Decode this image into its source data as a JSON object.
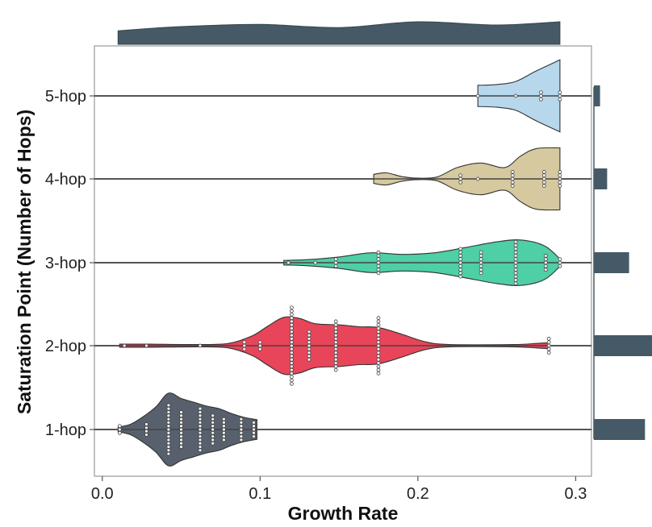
{
  "chart_data": {
    "type": "violin",
    "title": "",
    "xlabel": "Growth Rate",
    "ylabel": "Saturation Point (Number of Hops)",
    "xlim": [
      -0.005,
      0.31
    ],
    "x_ticks": [
      0.0,
      0.1,
      0.2,
      0.3
    ],
    "x_tick_labels": [
      "0.0",
      "0.1",
      "0.2",
      "0.3"
    ],
    "grid": false,
    "categories": [
      "1-hop",
      "2-hop",
      "3-hop",
      "4-hop",
      "5-hop"
    ],
    "colors": {
      "1-hop": "#57606c",
      "2-hop": "#e8455a",
      "3-hop": "#4ecfa6",
      "4-hop": "#d6c9a0",
      "5-hop": "#b7d7ec",
      "marginal": "#455a66",
      "reference_line": "#555555"
    },
    "series": [
      {
        "category": "1-hop",
        "range": [
          0.01,
          0.098
        ],
        "density": [
          [
            0.01,
            0.06
          ],
          [
            0.018,
            0.14
          ],
          [
            0.026,
            0.34
          ],
          [
            0.034,
            0.6
          ],
          [
            0.042,
            0.96
          ],
          [
            0.05,
            0.82
          ],
          [
            0.058,
            0.72
          ],
          [
            0.066,
            0.62
          ],
          [
            0.074,
            0.55
          ],
          [
            0.082,
            0.42
          ],
          [
            0.09,
            0.32
          ],
          [
            0.098,
            0.26
          ]
        ],
        "dot_columns": [
          [
            0.011,
            3
          ],
          [
            0.028,
            4
          ],
          [
            0.042,
            15
          ],
          [
            0.05,
            11
          ],
          [
            0.062,
            13
          ],
          [
            0.07,
            9
          ],
          [
            0.077,
            7
          ],
          [
            0.088,
            7
          ],
          [
            0.096,
            5
          ]
        ]
      },
      {
        "category": "2-hop",
        "range": [
          0.011,
          0.283
        ],
        "density": [
          [
            0.011,
            0.04
          ],
          [
            0.03,
            0.04
          ],
          [
            0.06,
            0.03
          ],
          [
            0.08,
            0.06
          ],
          [
            0.095,
            0.26
          ],
          [
            0.105,
            0.52
          ],
          [
            0.115,
            0.75
          ],
          [
            0.125,
            0.72
          ],
          [
            0.135,
            0.58
          ],
          [
            0.15,
            0.55
          ],
          [
            0.163,
            0.5
          ],
          [
            0.175,
            0.48
          ],
          [
            0.19,
            0.3
          ],
          [
            0.205,
            0.1
          ],
          [
            0.22,
            0.03
          ],
          [
            0.26,
            0.03
          ],
          [
            0.275,
            0.06
          ],
          [
            0.283,
            0.08
          ]
        ],
        "dot_columns": [
          [
            0.014,
            1
          ],
          [
            0.028,
            1
          ],
          [
            0.062,
            1
          ],
          [
            0.09,
            3
          ],
          [
            0.1,
            3
          ],
          [
            0.12,
            23
          ],
          [
            0.131,
            9
          ],
          [
            0.148,
            15
          ],
          [
            0.175,
            17
          ],
          [
            0.283,
            5
          ]
        ]
      },
      {
        "category": "3-hop",
        "range": [
          0.115,
          0.29
        ],
        "density": [
          [
            0.115,
            0.06
          ],
          [
            0.13,
            0.08
          ],
          [
            0.15,
            0.15
          ],
          [
            0.17,
            0.26
          ],
          [
            0.19,
            0.22
          ],
          [
            0.21,
            0.26
          ],
          [
            0.23,
            0.4
          ],
          [
            0.25,
            0.55
          ],
          [
            0.265,
            0.6
          ],
          [
            0.28,
            0.45
          ],
          [
            0.29,
            0.1
          ]
        ],
        "dot_columns": [
          [
            0.118,
            1
          ],
          [
            0.135,
            1
          ],
          [
            0.148,
            3
          ],
          [
            0.175,
            7
          ],
          [
            0.227,
            9
          ],
          [
            0.24,
            7
          ],
          [
            0.262,
            13
          ],
          [
            0.281,
            5
          ],
          [
            0.29,
            3
          ]
        ]
      },
      {
        "category": "4-hop",
        "range": [
          0.172,
          0.29
        ],
        "density": [
          [
            0.172,
            0.12
          ],
          [
            0.18,
            0.16
          ],
          [
            0.19,
            0.06
          ],
          [
            0.2,
            0.02
          ],
          [
            0.212,
            0.05
          ],
          [
            0.225,
            0.3
          ],
          [
            0.24,
            0.42
          ],
          [
            0.255,
            0.3
          ],
          [
            0.265,
            0.6
          ],
          [
            0.275,
            0.8
          ],
          [
            0.29,
            0.82
          ]
        ],
        "dot_columns": [
          [
            0.227,
            3
          ],
          [
            0.238,
            1
          ],
          [
            0.26,
            5
          ],
          [
            0.28,
            5
          ],
          [
            0.29,
            5
          ]
        ]
      },
      {
        "category": "5-hop",
        "range": [
          0.238,
          0.29
        ],
        "density": [
          [
            0.238,
            0.28
          ],
          [
            0.25,
            0.3
          ],
          [
            0.262,
            0.38
          ],
          [
            0.275,
            0.66
          ],
          [
            0.29,
            0.95
          ]
        ],
        "dot_columns": [
          [
            0.238,
            1
          ],
          [
            0.262,
            1
          ],
          [
            0.278,
            3
          ],
          [
            0.29,
            3
          ]
        ]
      }
    ],
    "marginal_x_density": [
      [
        0.01,
        0.42
      ],
      [
        0.05,
        0.55
      ],
      [
        0.1,
        0.62
      ],
      [
        0.15,
        0.52
      ],
      [
        0.2,
        0.7
      ],
      [
        0.25,
        0.6
      ],
      [
        0.29,
        0.7
      ]
    ],
    "marginal_y_counts": [
      {
        "category": "1-hop",
        "count": 58
      },
      {
        "category": "2-hop",
        "count": 66
      },
      {
        "category": "3-hop",
        "count": 40
      },
      {
        "category": "4-hop",
        "count": 15
      },
      {
        "category": "5-hop",
        "count": 7
      }
    ]
  }
}
